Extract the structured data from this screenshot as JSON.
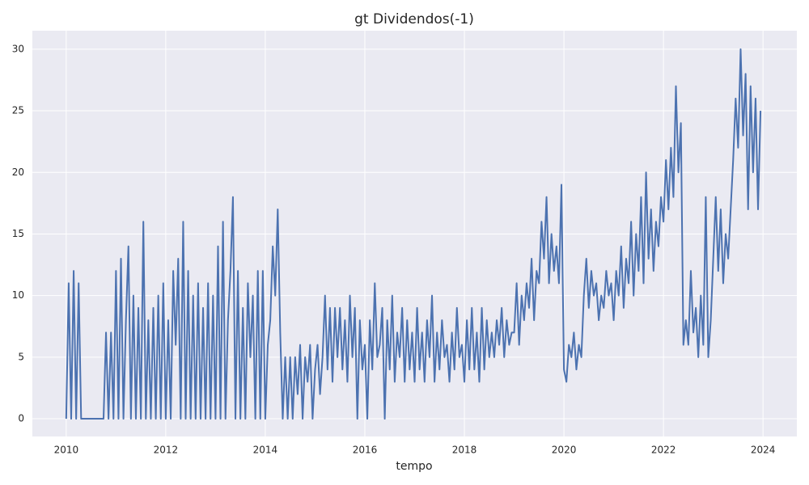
{
  "chart_data": {
    "type": "line",
    "title": "gt Dividendos(-1)",
    "x_label": "tempo",
    "color": "#4c72b0",
    "grid": true,
    "xlim": [
      2009.32,
      2024.68
    ],
    "xticks": [
      2010,
      2012,
      2014,
      2016,
      2018,
      2020,
      2022,
      2024
    ],
    "ylim": [
      -1.44,
      31.5
    ],
    "yticks": [
      0,
      5,
      10,
      15,
      20,
      25,
      30
    ],
    "x": [
      2010,
      2010.05,
      2010.1,
      2010.15,
      2010.2,
      2010.25,
      2010.3,
      2010.35,
      2010.4,
      2010.45,
      2010.5,
      2010.55,
      2010.6,
      2010.65,
      2010.7,
      2010.75,
      2010.8,
      2010.85,
      2010.9,
      2010.95,
      2011,
      2011.05,
      2011.1,
      2011.15,
      2011.2,
      2011.25,
      2011.3,
      2011.35,
      2011.4,
      2011.45,
      2011.5,
      2011.55,
      2011.6,
      2011.65,
      2011.7,
      2011.75,
      2011.8,
      2011.85,
      2011.9,
      2011.95,
      2012,
      2012.05,
      2012.1,
      2012.15,
      2012.2,
      2012.25,
      2012.3,
      2012.35,
      2012.4,
      2012.45,
      2012.5,
      2012.55,
      2012.6,
      2012.65,
      2012.7,
      2012.75,
      2012.8,
      2012.85,
      2012.9,
      2012.95,
      2013,
      2013.05,
      2013.1,
      2013.15,
      2013.2,
      2013.25,
      2013.3,
      2013.35,
      2013.4,
      2013.45,
      2013.5,
      2013.55,
      2013.6,
      2013.65,
      2013.7,
      2013.75,
      2013.8,
      2013.85,
      2013.9,
      2013.95,
      2014,
      2014.05,
      2014.1,
      2014.15,
      2014.2,
      2014.25,
      2014.3,
      2014.35,
      2014.4,
      2014.45,
      2014.5,
      2014.55,
      2014.6,
      2014.65,
      2014.7,
      2014.75,
      2014.8,
      2014.85,
      2014.9,
      2014.95,
      2015,
      2015.05,
      2015.1,
      2015.15,
      2015.2,
      2015.25,
      2015.3,
      2015.35,
      2015.4,
      2015.45,
      2015.5,
      2015.55,
      2015.6,
      2015.65,
      2015.7,
      2015.75,
      2015.8,
      2015.85,
      2015.9,
      2015.95,
      2016,
      2016.05,
      2016.1,
      2016.15,
      2016.2,
      2016.25,
      2016.3,
      2016.35,
      2016.4,
      2016.45,
      2016.5,
      2016.55,
      2016.6,
      2016.65,
      2016.7,
      2016.75,
      2016.8,
      2016.85,
      2016.9,
      2016.95,
      2017,
      2017.05,
      2017.1,
      2017.15,
      2017.2,
      2017.25,
      2017.3,
      2017.35,
      2017.4,
      2017.45,
      2017.5,
      2017.55,
      2017.6,
      2017.65,
      2017.7,
      2017.75,
      2017.8,
      2017.85,
      2017.9,
      2017.95,
      2018,
      2018.05,
      2018.1,
      2018.15,
      2018.2,
      2018.25,
      2018.3,
      2018.35,
      2018.4,
      2018.45,
      2018.5,
      2018.55,
      2018.6,
      2018.65,
      2018.7,
      2018.75,
      2018.8,
      2018.85,
      2018.9,
      2018.95,
      2019,
      2019.05,
      2019.1,
      2019.15,
      2019.2,
      2019.25,
      2019.3,
      2019.35,
      2019.4,
      2019.45,
      2019.5,
      2019.55,
      2019.6,
      2019.65,
      2019.7,
      2019.75,
      2019.8,
      2019.85,
      2019.9,
      2019.95,
      2020,
      2020.05,
      2020.1,
      2020.15,
      2020.2,
      2020.25,
      2020.3,
      2020.35,
      2020.4,
      2020.45,
      2020.5,
      2020.55,
      2020.6,
      2020.65,
      2020.7,
      2020.75,
      2020.8,
      2020.85,
      2020.9,
      2020.95,
      2021,
      2021.05,
      2021.1,
      2021.15,
      2021.2,
      2021.25,
      2021.3,
      2021.35,
      2021.4,
      2021.45,
      2021.5,
      2021.55,
      2021.6,
      2021.65,
      2021.7,
      2021.75,
      2021.8,
      2021.85,
      2021.9,
      2021.95,
      2022,
      2022.05,
      2022.1,
      2022.15,
      2022.2,
      2022.25,
      2022.3,
      2022.35,
      2022.4,
      2022.45,
      2022.5,
      2022.55,
      2022.6,
      2022.65,
      2022.7,
      2022.75,
      2022.8,
      2022.85,
      2022.9,
      2022.95,
      2023,
      2023.05,
      2023.1,
      2023.15,
      2023.2,
      2023.25,
      2023.3,
      2023.35,
      2023.4,
      2023.45,
      2023.5,
      2023.55,
      2023.6,
      2023.65,
      2023.7,
      2023.75,
      2023.8,
      2023.85,
      2023.9,
      2023.95
    ],
    "values": [
      0,
      11,
      0,
      12,
      0,
      11,
      0,
      0,
      0,
      0,
      0,
      0,
      0,
      0,
      0,
      0,
      7,
      0,
      7,
      0,
      12,
      0,
      13,
      0,
      8,
      14,
      0,
      10,
      0,
      9,
      0,
      16,
      0,
      8,
      0,
      9,
      0,
      10,
      0,
      11,
      0,
      8,
      0,
      12,
      6,
      13,
      0,
      16,
      0,
      12,
      0,
      10,
      0,
      11,
      0,
      9,
      0,
      11,
      0,
      10,
      0,
      14,
      0,
      16,
      0,
      8,
      12,
      18,
      0,
      12,
      0,
      9,
      0,
      11,
      5,
      10,
      0,
      12,
      0,
      12,
      0,
      6,
      8,
      14,
      10,
      17,
      7,
      0,
      5,
      0,
      5,
      0,
      5,
      2,
      6,
      0,
      5,
      3,
      6,
      0,
      4,
      6,
      2,
      5,
      10,
      4,
      9,
      3,
      9,
      5,
      9,
      4,
      8,
      3,
      10,
      5,
      9,
      0,
      8,
      4,
      6,
      0,
      8,
      4,
      11,
      5,
      6,
      9,
      0,
      8,
      4,
      10,
      3,
      7,
      5,
      9,
      3,
      8,
      4,
      7,
      3,
      9,
      4,
      7,
      3,
      8,
      5,
      10,
      3,
      7,
      4,
      8,
      5,
      6,
      3,
      7,
      4,
      9,
      5,
      6,
      3,
      8,
      4,
      9,
      4,
      7,
      3,
      9,
      4,
      8,
      5,
      7,
      5,
      8,
      6,
      9,
      5,
      8,
      6,
      7,
      7,
      11,
      6,
      10,
      8,
      11,
      9,
      13,
      8,
      12,
      11,
      16,
      13,
      18,
      11,
      15,
      12,
      14,
      11,
      19,
      4,
      3,
      6,
      5,
      7,
      4,
      6,
      5,
      10,
      13,
      9,
      12,
      10,
      11,
      8,
      10,
      9,
      12,
      10,
      11,
      8,
      12,
      10,
      14,
      9,
      13,
      11,
      16,
      10,
      15,
      12,
      18,
      11,
      20,
      13,
      17,
      12,
      16,
      14,
      18,
      16,
      21,
      17,
      22,
      18,
      27,
      20,
      24,
      6,
      8,
      6,
      12,
      7,
      9,
      5,
      10,
      6,
      18,
      5,
      8,
      13,
      18,
      12,
      17,
      11,
      15,
      13,
      17,
      21,
      26,
      22,
      30,
      23,
      28,
      17,
      27,
      20,
      26,
      17,
      25
    ]
  }
}
